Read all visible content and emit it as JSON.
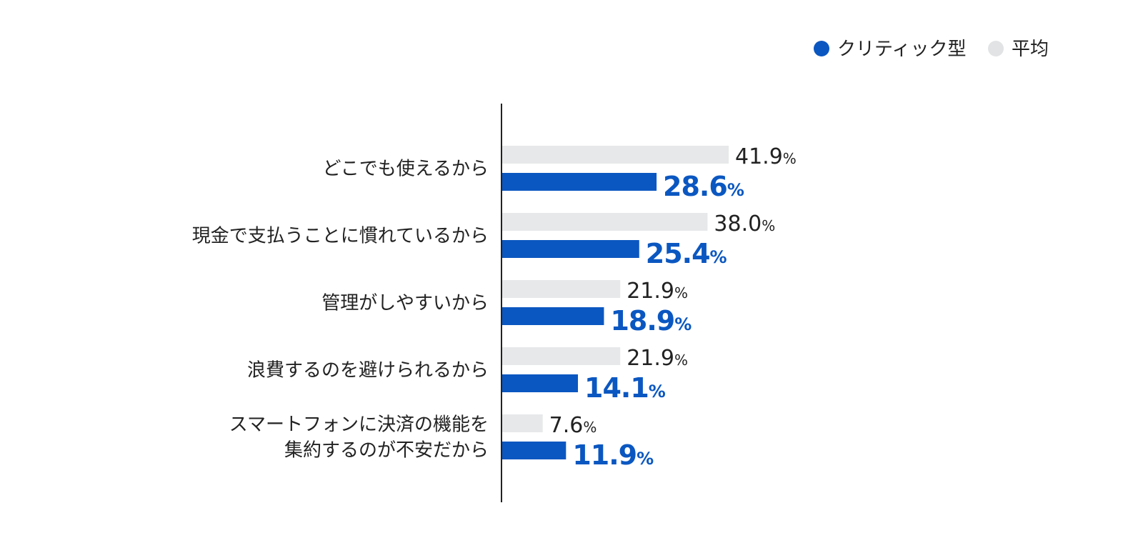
{
  "chart_data": {
    "type": "bar",
    "orientation": "horizontal",
    "categories": [
      [
        "どこでも使えるから"
      ],
      [
        "現金で支払うことに慣れているから"
      ],
      [
        "管理がしやすいから"
      ],
      [
        "浪費するのを避けられるから"
      ],
      [
        "スマートフォンに決済の機能を",
        "集約するのが不安だから"
      ]
    ],
    "series": [
      {
        "name": "平均",
        "values": [
          41.9,
          38.0,
          21.9,
          21.9,
          7.6
        ],
        "labels": [
          "41.9",
          "38.0",
          "21.9",
          "21.9",
          "7.6"
        ],
        "color": "#e6e8e9"
      },
      {
        "name": "クリティック型",
        "values": [
          28.6,
          25.4,
          18.9,
          14.1,
          11.9
        ],
        "labels": [
          "28.6",
          "25.4",
          "18.9",
          "14.1",
          "11.9"
        ],
        "color": "#0b57c1"
      }
    ],
    "value_suffix": "%",
    "legend_position": "top-right",
    "grid": false
  },
  "legend": [
    {
      "label": "クリティック型",
      "color": "#0b57c1"
    },
    {
      "label": "平均",
      "color": "#e1e3e5"
    }
  ],
  "colors": {
    "axis": "#222222",
    "label_text": "#222222",
    "accent": "#0b57c1"
  }
}
